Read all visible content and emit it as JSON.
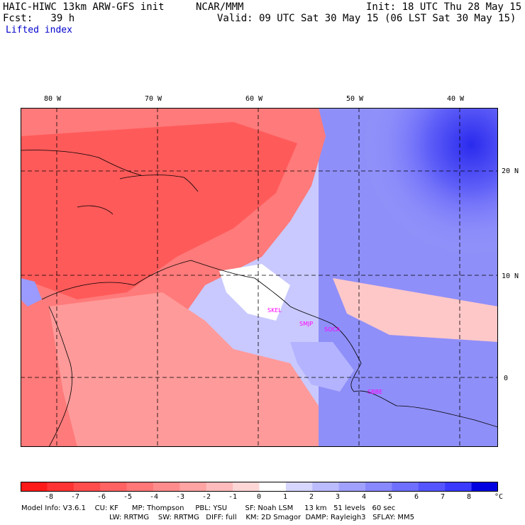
{
  "header": {
    "model": "HAIC-HIWC 13km ARW-GFS init",
    "center": "NCAR/MMM",
    "init": "Init: 18 UTC Thu 28 May 15",
    "fcst": "Fcst:   39 h",
    "valid": "Valid: 09 UTC Sat 30 May 15 (06 LST Sat 30 May 15)",
    "field": "Lifted index"
  },
  "map": {
    "lon_labels": [
      "80 W",
      "70 W",
      "60 W",
      "50 W",
      "40 W"
    ],
    "lat_labels": [
      "20 N",
      "10 N",
      "0"
    ],
    "stations": [
      "SKEL",
      "SMJP",
      "SOCA",
      "SBBE"
    ]
  },
  "colorbar": {
    "ticks": [
      "-8",
      "-7",
      "-6",
      "-5",
      "-4",
      "-3",
      "-2",
      "-1",
      "0",
      "1",
      "2",
      "3",
      "4",
      "5",
      "6",
      "7",
      "8"
    ],
    "unit": "°C",
    "colors": [
      "#ff1a1a",
      "#ff3333",
      "#ff4d4d",
      "#ff6262",
      "#ff7777",
      "#ff8c8c",
      "#ffa3a3",
      "#ffbbbb",
      "#ffd6d6",
      "#ffffff",
      "#d6d6ff",
      "#bbbbff",
      "#a0a0ff",
      "#8888ff",
      "#6f6fff",
      "#5555ff",
      "#3a3aff",
      "#0000e0"
    ]
  },
  "model_info": {
    "line1": "Model Info: V3.6.1    CU: KF      MP: Thompson     PBL: YSU        SF: Noah LSM     13 km   51 levels   60 sec",
    "line2": "LW: RRTMG    SW: RRTMG   DIFF: full    KM: 2D Smagor  DAMP: Rayleigh3   SFLAY: MM5"
  }
}
